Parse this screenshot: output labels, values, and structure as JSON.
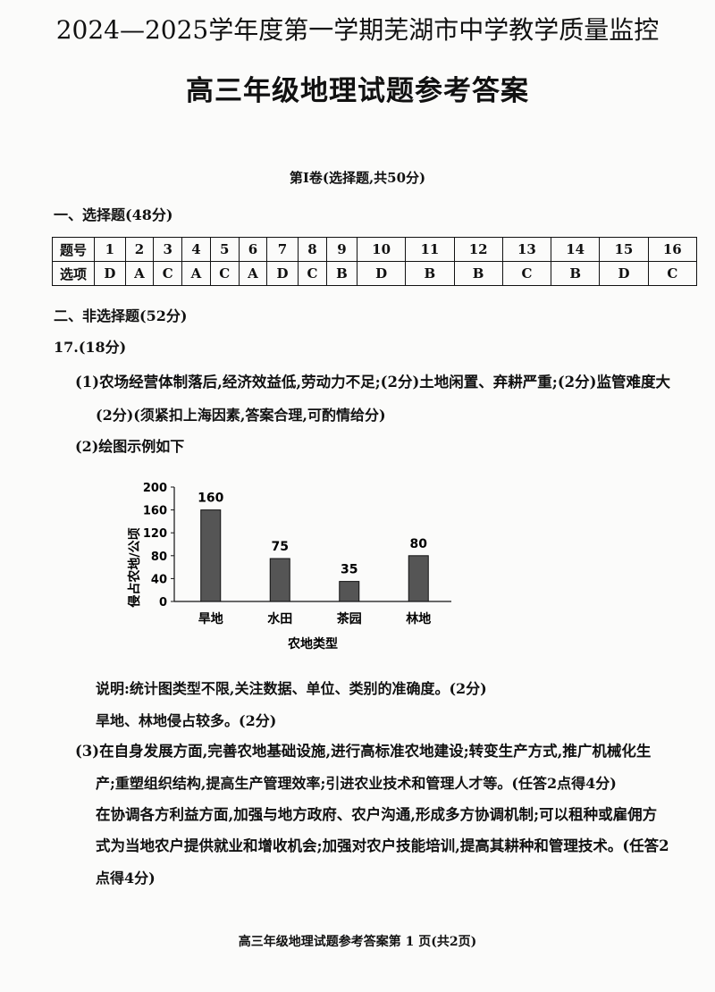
{
  "header": {
    "title": "2024—2025学年度第一学期芜湖市中学教学质量监控",
    "subtitle": "高三年级地理试题参考答案"
  },
  "part1_title": "第Ⅰ卷(选择题,共50分)",
  "section1": {
    "heading": "一、选择题(48分)",
    "table": {
      "row_labels": [
        "题号",
        "选项"
      ],
      "numbers": [
        "1",
        "2",
        "3",
        "4",
        "5",
        "6",
        "7",
        "8",
        "9",
        "10",
        "11",
        "12",
        "13",
        "14",
        "15",
        "16"
      ],
      "answers": [
        "D",
        "A",
        "C",
        "A",
        "C",
        "A",
        "D",
        "C",
        "B",
        "D",
        "B",
        "B",
        "C",
        "B",
        "D",
        "C"
      ]
    }
  },
  "section2": {
    "heading": "二、非选择题(52分)",
    "q17": {
      "label": "17.(18分)",
      "part1": [
        "(1)农场经营体制落后,经济效益低,劳动力不足;(2分)土地闲置、弃耕严重;(2分)监管难度大",
        "(2分)(须紧扣上海因素,答案合理,可酌情给分)"
      ],
      "part2": "(2)绘图示例如下",
      "note": "说明:统计图类型不限,关注数据、单位、类别的准确度。(2分)",
      "conclusion": "旱地、林地侵占较多。(2分)",
      "part3": [
        "(3)在自身发展方面,完善农地基础设施,进行高标准农地建设;转变生产方式,推广机械化生",
        "产;重塑组织结构,提高生产管理效率;引进农业技术和管理人才等。(任答2点得4分)",
        "在协调各方利益方面,加强与地方政府、农户沟通,形成多方协调机制;可以租种或雇佣方",
        "式为当地农户提供就业和增收机会;加强对农户技能培训,提高其耕种和管理技术。(任答2",
        "点得4分)"
      ]
    }
  },
  "chart_data": {
    "type": "bar",
    "categories": [
      "旱地",
      "水田",
      "茶园",
      "林地"
    ],
    "values": [
      160,
      75,
      35,
      80
    ],
    "data_labels": [
      "160",
      "75",
      "35",
      "80"
    ],
    "xlabel": "农地类型",
    "ylabel": "侵占农地/公顷",
    "ylim": [
      0,
      200
    ],
    "yticks": [
      "0",
      "40",
      "80",
      "120",
      "160",
      "200"
    ],
    "grid": false,
    "bar_color": "#555555"
  },
  "footer": "高三年级地理试题参考答案第  1  页(共2页)"
}
